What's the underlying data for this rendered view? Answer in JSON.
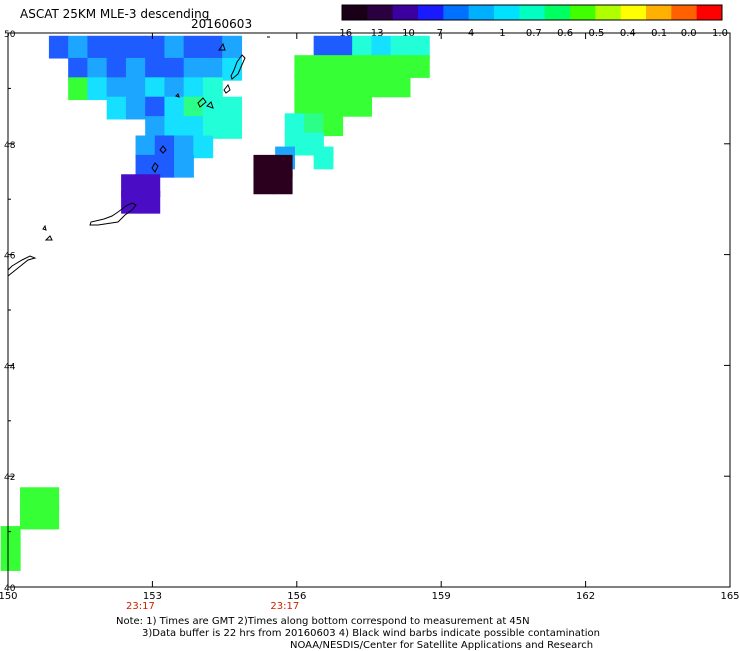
{
  "header": {
    "title": "ASCAT 25KM MLE-3 descending",
    "date": "20160603"
  },
  "colorbar": {
    "labels": [
      "-16",
      "-13",
      "-10",
      "-7",
      "-4",
      "-1",
      "-0.7",
      "-0.6",
      "-0.5",
      "-0.4",
      "-0.1",
      "0.0",
      "1.0"
    ],
    "colors": [
      "#1a0016",
      "#2b0040",
      "#3d00a0",
      "#1a1aff",
      "#0070ff",
      "#00b0ff",
      "#00e0ff",
      "#00ffc0",
      "#00ff60",
      "#40ff00",
      "#b0ff00",
      "#ffff00",
      "#ffb000",
      "#ff6000",
      "#ff0000"
    ]
  },
  "axes": {
    "lon_ticks": [
      "150",
      "153",
      "156",
      "159",
      "162",
      "165"
    ],
    "lat_ticks": [
      "50",
      "48",
      "46",
      "44",
      "42",
      "40"
    ],
    "time_labels": [
      "23:17",
      "23:17"
    ]
  },
  "cell_colors": {
    "dark": "#2a001e",
    "purple": "#4a0cc4",
    "blue": "#1e5cff",
    "lightblue": "#1ca6ff",
    "cyan": "#16e0ff",
    "aqua": "#22ffd8",
    "green": "#36ff36",
    "green2": "#2cff88"
  },
  "swaths": {
    "west": [
      {
        "lon": 151.05,
        "lat": 49.75,
        "v": "blue"
      },
      {
        "lon": 151.45,
        "lat": 49.75,
        "v": "lightblue"
      },
      {
        "lon": 151.85,
        "lat": 49.75,
        "v": "blue"
      },
      {
        "lon": 152.25,
        "lat": 49.75,
        "v": "blue"
      },
      {
        "lon": 152.65,
        "lat": 49.75,
        "v": "blue"
      },
      {
        "lon": 153.05,
        "lat": 49.75,
        "v": "blue"
      },
      {
        "lon": 153.45,
        "lat": 49.75,
        "v": "lightblue"
      },
      {
        "lon": 153.85,
        "lat": 49.75,
        "v": "blue"
      },
      {
        "lon": 154.25,
        "lat": 49.75,
        "v": "blue"
      },
      {
        "lon": 154.65,
        "lat": 49.75,
        "v": "lightblue"
      },
      {
        "lon": 151.45,
        "lat": 49.35,
        "v": "blue"
      },
      {
        "lon": 151.85,
        "lat": 49.35,
        "v": "lightblue"
      },
      {
        "lon": 152.25,
        "lat": 49.35,
        "v": "blue"
      },
      {
        "lon": 152.65,
        "lat": 49.35,
        "v": "lightblue"
      },
      {
        "lon": 153.05,
        "lat": 49.35,
        "v": "blue"
      },
      {
        "lon": 153.45,
        "lat": 49.35,
        "v": "blue"
      },
      {
        "lon": 153.85,
        "lat": 49.35,
        "v": "lightblue"
      },
      {
        "lon": 154.25,
        "lat": 49.35,
        "v": "lightblue"
      },
      {
        "lon": 154.65,
        "lat": 49.35,
        "v": "cyan"
      },
      {
        "lon": 151.45,
        "lat": 49.0,
        "v": "green"
      },
      {
        "lon": 151.85,
        "lat": 49.0,
        "v": "cyan"
      },
      {
        "lon": 152.25,
        "lat": 49.0,
        "v": "lightblue"
      },
      {
        "lon": 152.65,
        "lat": 49.0,
        "v": "lightblue"
      },
      {
        "lon": 153.05,
        "lat": 49.0,
        "v": "cyan"
      },
      {
        "lon": 153.45,
        "lat": 49.0,
        "v": "lightblue"
      },
      {
        "lon": 153.85,
        "lat": 49.0,
        "v": "cyan"
      },
      {
        "lon": 154.25,
        "lat": 49.0,
        "v": "aqua"
      },
      {
        "lon": 152.25,
        "lat": 48.65,
        "v": "cyan"
      },
      {
        "lon": 152.65,
        "lat": 48.65,
        "v": "lightblue"
      },
      {
        "lon": 153.05,
        "lat": 48.65,
        "v": "blue"
      },
      {
        "lon": 153.45,
        "lat": 48.65,
        "v": "cyan"
      },
      {
        "lon": 153.85,
        "lat": 48.65,
        "v": "green2"
      },
      {
        "lon": 154.25,
        "lat": 48.65,
        "v": "aqua"
      },
      {
        "lon": 154.65,
        "lat": 48.65,
        "v": "aqua"
      },
      {
        "lon": 153.05,
        "lat": 48.3,
        "v": "lightblue"
      },
      {
        "lon": 153.45,
        "lat": 48.3,
        "v": "cyan"
      },
      {
        "lon": 153.85,
        "lat": 48.3,
        "v": "cyan"
      },
      {
        "lon": 154.25,
        "lat": 48.3,
        "v": "aqua"
      },
      {
        "lon": 154.65,
        "lat": 48.3,
        "v": "aqua"
      },
      {
        "lon": 152.85,
        "lat": 47.95,
        "v": "lightblue"
      },
      {
        "lon": 153.25,
        "lat": 47.95,
        "v": "blue"
      },
      {
        "lon": 153.65,
        "lat": 47.95,
        "v": "lightblue"
      },
      {
        "lon": 154.05,
        "lat": 47.95,
        "v": "cyan"
      },
      {
        "lon": 152.85,
        "lat": 47.6,
        "v": "blue"
      },
      {
        "lon": 153.25,
        "lat": 47.6,
        "v": "blue"
      },
      {
        "lon": 153.65,
        "lat": 47.6,
        "v": "lightblue"
      },
      {
        "lon": 152.55,
        "lat": 47.25,
        "v": "purple"
      },
      {
        "lon": 152.95,
        "lat": 47.25,
        "v": "purple"
      },
      {
        "lon": 152.55,
        "lat": 46.95,
        "v": "purple"
      },
      {
        "lon": 152.95,
        "lat": 46.95,
        "v": "purple"
      }
    ],
    "east": [
      {
        "lon": 156.55,
        "lat": 49.75,
        "v": "blue"
      },
      {
        "lon": 156.95,
        "lat": 49.75,
        "v": "blue"
      },
      {
        "lon": 157.35,
        "lat": 49.75,
        "v": "aqua"
      },
      {
        "lon": 157.75,
        "lat": 49.75,
        "v": "cyan"
      },
      {
        "lon": 158.15,
        "lat": 49.75,
        "v": "aqua"
      },
      {
        "lon": 158.55,
        "lat": 49.75,
        "v": "aqua"
      },
      {
        "lon": 156.15,
        "lat": 49.4,
        "v": "green"
      },
      {
        "lon": 156.55,
        "lat": 49.4,
        "v": "green"
      },
      {
        "lon": 156.95,
        "lat": 49.4,
        "v": "green"
      },
      {
        "lon": 157.35,
        "lat": 49.4,
        "v": "green"
      },
      {
        "lon": 157.75,
        "lat": 49.4,
        "v": "green"
      },
      {
        "lon": 158.15,
        "lat": 49.4,
        "v": "green"
      },
      {
        "lon": 158.55,
        "lat": 49.4,
        "v": "green"
      },
      {
        "lon": 156.15,
        "lat": 49.05,
        "v": "green"
      },
      {
        "lon": 156.55,
        "lat": 49.05,
        "v": "green"
      },
      {
        "lon": 156.95,
        "lat": 49.05,
        "v": "green"
      },
      {
        "lon": 157.35,
        "lat": 49.05,
        "v": "green"
      },
      {
        "lon": 157.75,
        "lat": 49.05,
        "v": "green"
      },
      {
        "lon": 158.15,
        "lat": 49.05,
        "v": "green"
      },
      {
        "lon": 156.15,
        "lat": 48.7,
        "v": "green"
      },
      {
        "lon": 156.55,
        "lat": 48.7,
        "v": "green"
      },
      {
        "lon": 156.95,
        "lat": 48.7,
        "v": "green"
      },
      {
        "lon": 157.35,
        "lat": 48.7,
        "v": "green"
      },
      {
        "lon": 155.95,
        "lat": 48.35,
        "v": "aqua"
      },
      {
        "lon": 156.35,
        "lat": 48.35,
        "v": "green2"
      },
      {
        "lon": 156.75,
        "lat": 48.35,
        "v": "green"
      },
      {
        "lon": 155.95,
        "lat": 48.0,
        "v": "aqua"
      },
      {
        "lon": 156.35,
        "lat": 48.0,
        "v": "aqua"
      },
      {
        "lon": 156.55,
        "lat": 47.75,
        "v": "aqua"
      },
      {
        "lon": 155.75,
        "lat": 47.75,
        "v": "lightblue"
      },
      {
        "lon": 155.3,
        "lat": 47.6,
        "v": "dark"
      },
      {
        "lon": 155.7,
        "lat": 47.6,
        "v": "dark"
      },
      {
        "lon": 155.3,
        "lat": 47.3,
        "v": "dark"
      },
      {
        "lon": 155.7,
        "lat": 47.3,
        "v": "dark"
      }
    ],
    "south": [
      {
        "lon": 150.45,
        "lat": 41.6,
        "v": "green"
      },
      {
        "lon": 150.85,
        "lat": 41.6,
        "v": "green"
      },
      {
        "lon": 150.45,
        "lat": 41.25,
        "v": "green"
      },
      {
        "lon": 150.85,
        "lat": 41.25,
        "v": "green"
      },
      {
        "lon": 150.05,
        "lat": 40.9,
        "v": "green"
      },
      {
        "lon": 150.05,
        "lat": 40.5,
        "v": "green"
      }
    ]
  },
  "notes": {
    "line1": "Note: 1) Times are GMT 2)Times along bottom correspond to measurement at 45N",
    "line2": "3)Data buffer is 22 hrs from 20160603 4) Black wind barbs indicate possible contamination",
    "line3": "NOAA/NESDIS/Center for Satellite Applications and Research"
  }
}
